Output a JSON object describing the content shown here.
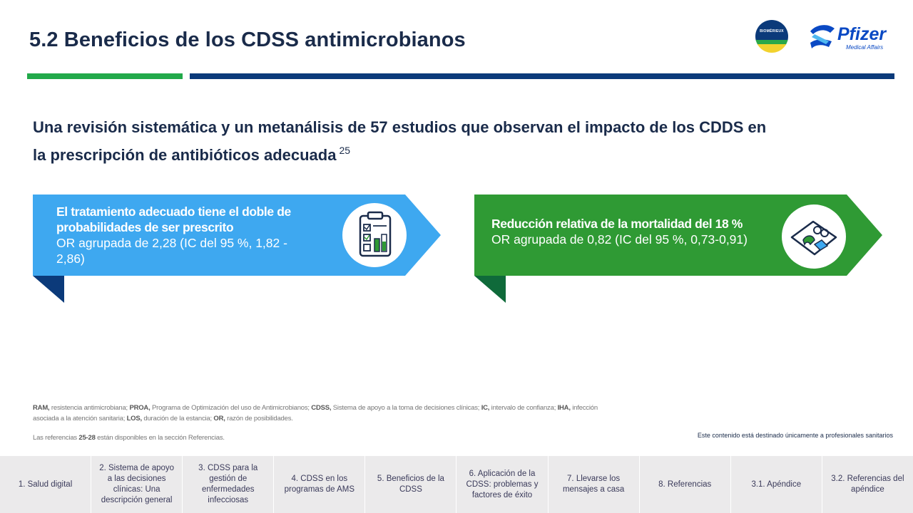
{
  "header": {
    "title": "5.2 Beneficios de los CDSS antimicrobianos",
    "logo_biomerieux": "BIOMÉRIEUX",
    "logo_pfizer": "Pfizer",
    "logo_pfizer_sub": "Medical Affairs"
  },
  "headline": {
    "text": "Una revisión sistemática y un metanálisis de 57 estudios que observan el impacto de los CDDS en la prescripción de antibióticos adecuada",
    "ref": "25"
  },
  "cards": [
    {
      "bold": "El tratamiento adecuado tiene el doble de probabilidades de ser prescrito",
      "detail": "OR agrupada de 2,28 (IC del 95 %, 1,82 - 2,86)",
      "color": "#3ea8f0",
      "shadow": "#0b3a7a",
      "icon": "clipboard-checklist-icon"
    },
    {
      "bold": "Reducción relativa de la mortalidad del 18 %",
      "detail": "OR agrupada de 0,82 (IC del 95 %, 0,73-0,91)",
      "color": "#2f9a34",
      "shadow": "#0f6a3a",
      "icon": "patient-bed-icon"
    }
  ],
  "footnotes": {
    "abbr": [
      {
        "term": "RAM,",
        "def": " resistencia antimicrobiana; "
      },
      {
        "term": "PROA,",
        "def": " Programa de Optimización del uso de Antimicrobianos; "
      },
      {
        "term": "CDSS,",
        "def": " Sistema de apoyo a la toma de decisiones clínicas; "
      },
      {
        "term": "IC,",
        "def": " intervalo de confianza; "
      },
      {
        "term": "IHA,",
        "def": " infección asociada a la atención sanitaria; "
      },
      {
        "term": "LOS,",
        "def": " duración de la estancia; "
      },
      {
        "term": "OR,",
        "def": " razón de posibilidades."
      }
    ],
    "refs_prefix": "Las referencias ",
    "refs_range": "25-28",
    "refs_suffix": " están disponibles en la sección Referencias.",
    "disclaimer": "Este contenido está destinado únicamente a profesionales sanitarios"
  },
  "nav": [
    "1. Salud digital",
    "2. Sistema de apoyo a las decisiones clínicas: Una descripción general",
    "3. CDSS para la gestión de enfermedades infecciosas",
    "4. CDSS en los programas de AMS",
    "5. Beneficios de la CDSS",
    "6. Aplicación de la CDSS: problemas y factores de éxito",
    "7. Llevarse los mensajes a casa",
    "8. Referencias",
    "3.1. Apéndice",
    "3.2. Referencias del apéndice"
  ]
}
